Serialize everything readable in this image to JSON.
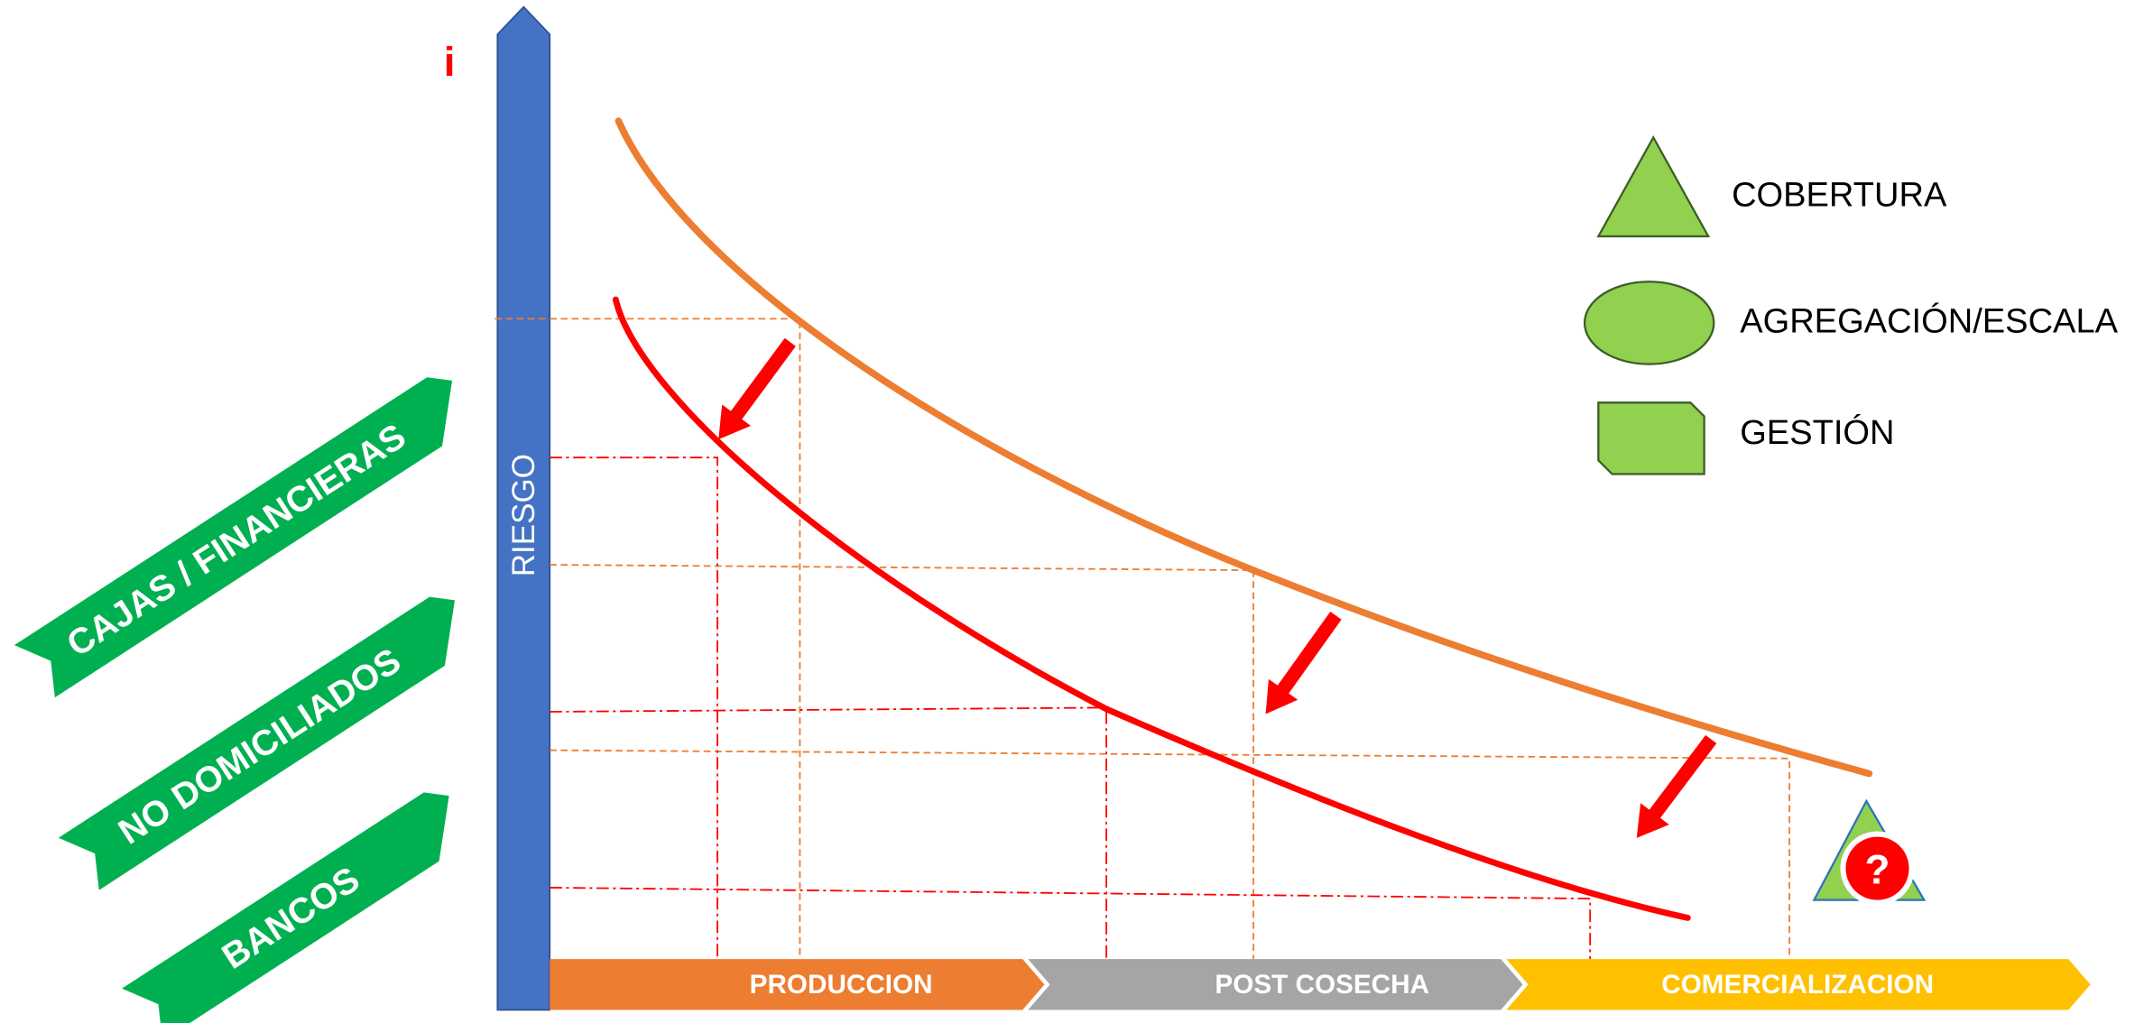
{
  "diagram": {
    "y_axis": {
      "symbol": "i",
      "label": "RIESGO"
    },
    "stages": [
      {
        "label": "PRODUCCION"
      },
      {
        "label": "POST COSECHA"
      },
      {
        "label": "COMERCIALIZACION"
      }
    ],
    "lenders": [
      {
        "label": "CAJAS / FINANCIERAS"
      },
      {
        "label": "NO DOMICILIADOS"
      },
      {
        "label": "BANCOS"
      }
    ],
    "legend": [
      {
        "label": "COBERTURA",
        "icon": "triangle-icon"
      },
      {
        "label": "AGREGACIÓN/ESCALA",
        "icon": "ellipse-icon"
      },
      {
        "label": "GESTIÓN",
        "icon": "snip-rectangle-icon"
      }
    ],
    "badge": {
      "icon": "question-icon",
      "glyph": "?"
    }
  },
  "colors": {
    "risk_axis": "#4472C4",
    "production": "#ED7D31",
    "post_harvest": "#A5A5A5",
    "commercialization": "#FFC000",
    "lender_banner": "#00B050",
    "legend_shape": "#92D050",
    "upper_curve": "#ED7D31",
    "lower_curve": "#FF0000",
    "reduction_arrow": "#FF0000",
    "badge": "#FF0000",
    "symbol": "#FF0000"
  }
}
